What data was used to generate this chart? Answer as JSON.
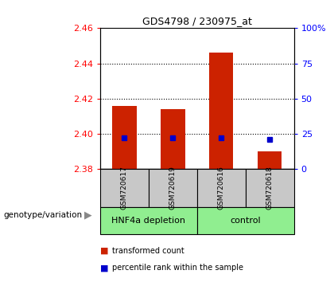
{
  "title": "GDS4798 / 230975_at",
  "samples": [
    "GSM720617",
    "GSM720619",
    "GSM720616",
    "GSM720618"
  ],
  "red_values": [
    2.416,
    2.414,
    2.446,
    2.39
  ],
  "blue_values": [
    2.398,
    2.398,
    2.398,
    2.397
  ],
  "ylim_left": [
    2.38,
    2.46
  ],
  "yticks_left": [
    2.38,
    2.4,
    2.42,
    2.44,
    2.46
  ],
  "ylim_right": [
    0,
    100
  ],
  "yticks_right": [
    0,
    25,
    50,
    75,
    100
  ],
  "yticklabels_right": [
    "0",
    "25",
    "50",
    "75",
    "100%"
  ],
  "base_value": 2.38,
  "group_label": "genotype/variation",
  "legend_red": "transformed count",
  "legend_blue": "percentile rank within the sample",
  "group_names": [
    "HNF4a depletion",
    "control"
  ],
  "group_bg_color": "#90ee90",
  "sample_bg_color": "#c8c8c8",
  "bar_width": 0.5,
  "dotted_lines": [
    2.4,
    2.42,
    2.44
  ],
  "title_fontsize": 9,
  "tick_fontsize": 8,
  "label_fontsize": 8
}
